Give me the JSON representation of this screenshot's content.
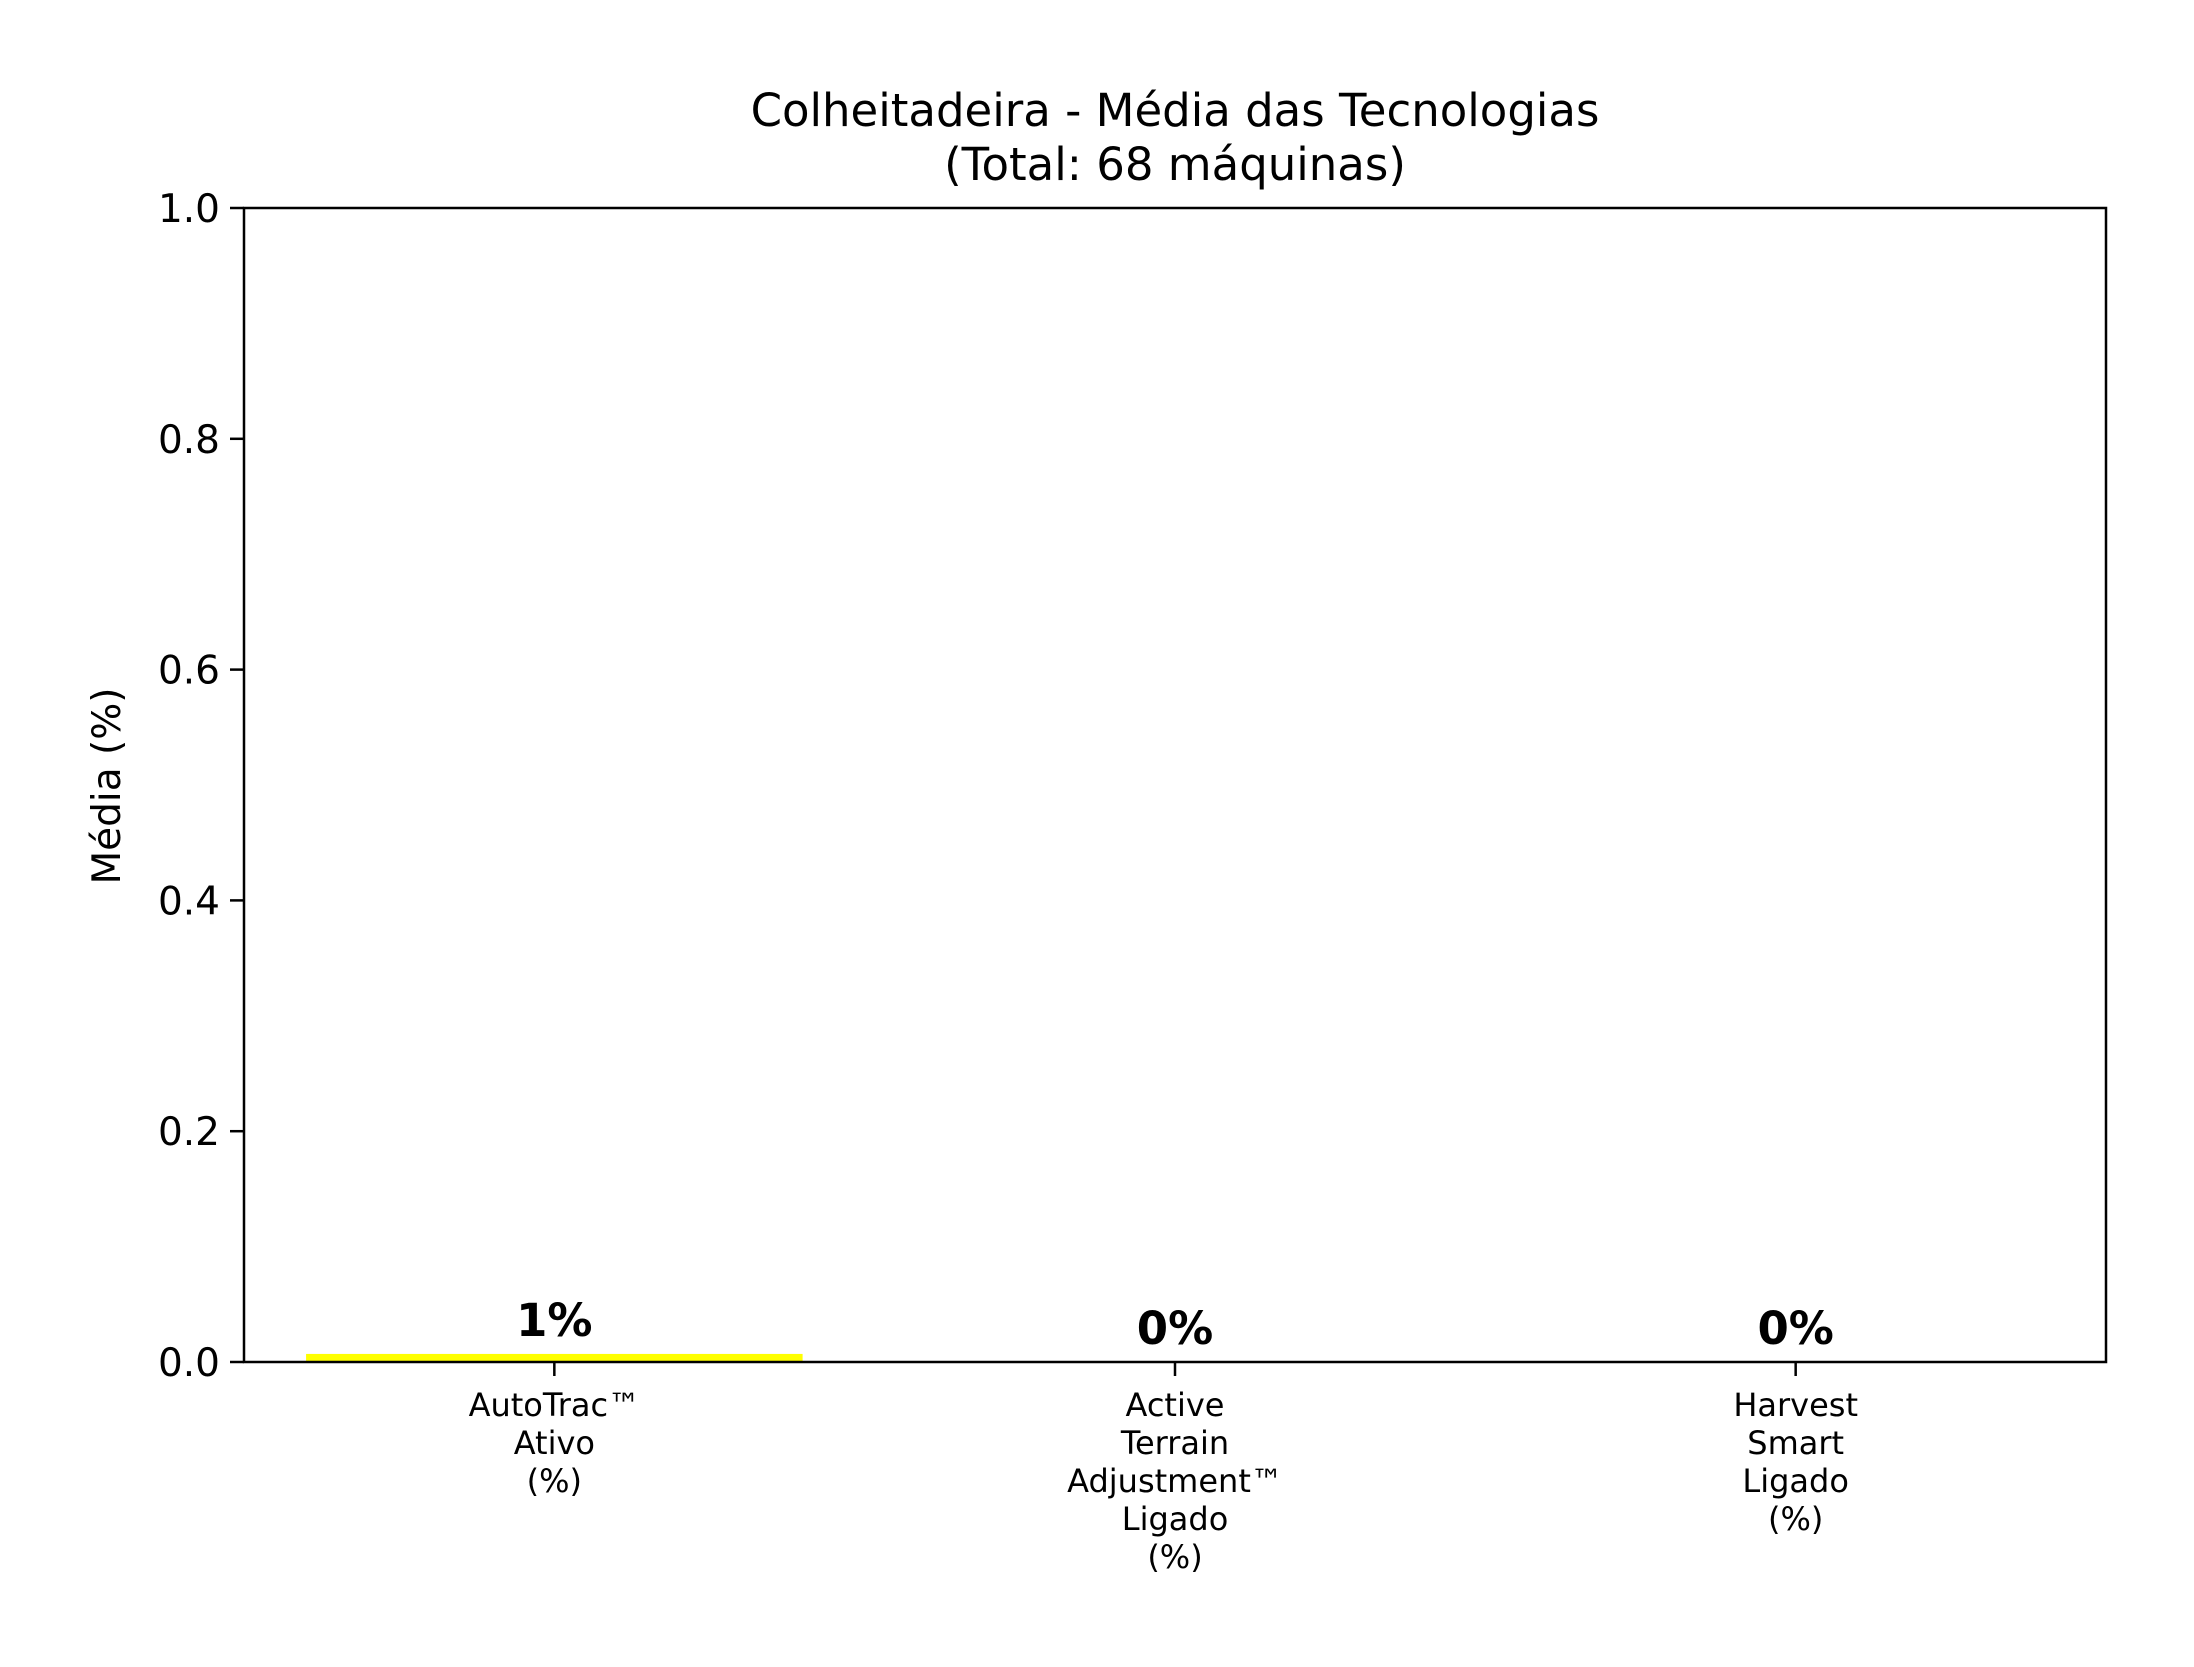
{
  "chart_data": {
    "type": "bar",
    "title_lines": [
      "Colheitadeira - Média das Tecnologias",
      "(Total: 68 máquinas)"
    ],
    "xlabel": "",
    "ylabel": "Média (%)",
    "ylim": [
      0,
      1.0
    ],
    "yticks": [
      "0.0",
      "0.2",
      "0.4",
      "0.6",
      "0.8",
      "1.0"
    ],
    "grid": false,
    "legend": "none",
    "categories": [
      [
        "AutoTrac™",
        "Ativo",
        "(%)"
      ],
      [
        "Active",
        "Terrain",
        "Adjustment™",
        "Ligado",
        "(%)"
      ],
      [
        "Harvest",
        "Smart",
        "Ligado",
        "(%)"
      ]
    ],
    "values": [
      0.007,
      0.0,
      0.0
    ],
    "value_labels": [
      "1%",
      "0%",
      "0%"
    ],
    "bar_color": "#ffff00"
  }
}
